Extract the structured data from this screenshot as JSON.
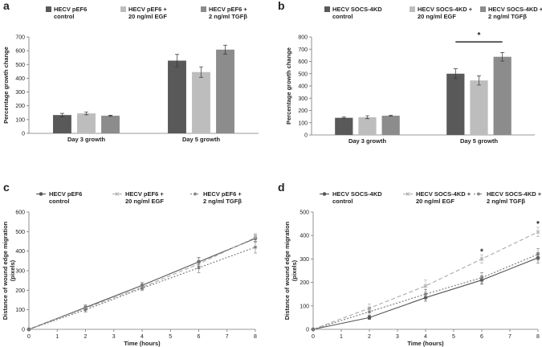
{
  "chart_data": [
    {
      "panel": "a",
      "type": "bar",
      "categories": [
        "Day 3 growth",
        "Day 5 growth"
      ],
      "series": [
        {
          "name": "HECV pEF6 control",
          "line1": "HECV pEF6",
          "line2": "control",
          "color": "#595959",
          "values": [
            133,
            528
          ],
          "errors": [
            12,
            45
          ]
        },
        {
          "name": "HECV pEF6 + 20 ng/ml EGF",
          "line1": "HECV pEF6 +",
          "line2": "20 ng/ml EGF",
          "color": "#bdbdbd",
          "values": [
            145,
            445
          ],
          "errors": [
            10,
            38
          ]
        },
        {
          "name": "HECV pEF6 + 2 ng/ml TGFβ",
          "line1": "HECV pEF6 +",
          "line2": "2 ng/ml TGFβ",
          "color": "#8c8c8c",
          "values": [
            128,
            608
          ],
          "errors": [
            4,
            32
          ]
        }
      ],
      "ylabel": "Percentage growth change",
      "xlabel": "",
      "ylim": [
        0,
        700
      ],
      "yticks": [
        "0",
        "100",
        "200",
        "300",
        "400",
        "500",
        "600",
        "700"
      ],
      "annotations": []
    },
    {
      "panel": "b",
      "type": "bar",
      "categories": [
        "Day 3 growth",
        "Day 5 growth"
      ],
      "series": [
        {
          "name": "HECV SOCS-4KD control",
          "line1": "HECV SOCS-4KD",
          "line2": "control",
          "color": "#595959",
          "values": [
            140,
            500
          ],
          "errors": [
            6,
            40
          ]
        },
        {
          "name": "HECV SOCS-4KD + 20 ng/ml EGF",
          "line1": "HECV SOCS-4KD +",
          "line2": "20 ng/ml EGF",
          "color": "#bdbdbd",
          "values": [
            145,
            445
          ],
          "errors": [
            12,
            38
          ]
        },
        {
          "name": "HECV SOCS-4KD + 2 ng/ml TGFβ",
          "line1": "HECV SOCS-4KD +",
          "line2": "2 ng/ml TGFβ",
          "color": "#8c8c8c",
          "values": [
            157,
            638
          ],
          "errors": [
            4,
            35
          ]
        }
      ],
      "ylabel": "Percentage growth change",
      "xlabel": "",
      "ylim": [
        0,
        800
      ],
      "yticks": [
        "0",
        "100",
        "200",
        "300",
        "400",
        "500",
        "600",
        "700",
        "800"
      ],
      "annotations": [
        {
          "type": "bracket",
          "category": "Day 5 growth",
          "from_series": 0,
          "to_series": 2,
          "y": 760,
          "text": "*"
        }
      ]
    },
    {
      "panel": "c",
      "type": "line",
      "x": [
        0,
        2,
        4,
        6,
        8
      ],
      "series": [
        {
          "name": "HECV pEF6 control",
          "line1": "HECV pEF6",
          "line2": "control",
          "color": "#555555",
          "dash": "",
          "marker": "circle",
          "values": [
            0,
            112,
            225,
            345,
            465
          ],
          "errors": [
            0,
            12,
            14,
            22,
            18
          ]
        },
        {
          "name": "HECV pEF6 + 20 ng/ml EGF",
          "line1": "HECV pEF6 +",
          "line2": "20 ng/ml EGF",
          "color": "#aaaaaa",
          "dash": "5,3",
          "marker": "cross",
          "values": [
            0,
            108,
            215,
            335,
            470
          ],
          "errors": [
            0,
            14,
            12,
            25,
            20
          ]
        },
        {
          "name": "HECV pEF6 + 2 ng/ml TGFβ",
          "line1": "HECV pEF6 +",
          "line2": "2 ng/ml TGFβ",
          "color": "#777777",
          "dash": "2,2",
          "marker": "star",
          "values": [
            0,
            100,
            210,
            315,
            420
          ],
          "errors": [
            0,
            12,
            12,
            25,
            30
          ]
        }
      ],
      "xlabel": "Time (hours)",
      "ylabel": "Distance of wound edge migration (pixels)",
      "ylabel_line1": "Distance of wound edge migration",
      "ylabel_line2": "(pixels)",
      "xlim": [
        0,
        8
      ],
      "ylim": [
        0,
        600
      ],
      "xticks": [
        "0",
        "1",
        "2",
        "3",
        "4",
        "5",
        "6",
        "7",
        "8"
      ],
      "yticks": [
        "0",
        "100",
        "200",
        "300",
        "400",
        "500",
        "600"
      ],
      "annotations": []
    },
    {
      "panel": "d",
      "type": "line",
      "x": [
        0,
        2,
        4,
        6,
        8
      ],
      "series": [
        {
          "name": "HECV SOCS-4KD control",
          "line1": "HECV SOCS-4KD",
          "line2": "control",
          "color": "#555555",
          "dash": "",
          "marker": "circle",
          "values": [
            0,
            50,
            135,
            210,
            305
          ],
          "errors": [
            0,
            8,
            15,
            18,
            22
          ]
        },
        {
          "name": "HECV SOCS-4KD + 20 ng/ml EGF",
          "line1": "HECV SOCS-4KD +",
          "line2": "20 ng/ml EGF",
          "color": "#aaaaaa",
          "dash": "5,3",
          "marker": "cross",
          "values": [
            0,
            90,
            185,
            300,
            415
          ],
          "errors": [
            0,
            18,
            25,
            18,
            20
          ]
        },
        {
          "name": "HECV SOCS-4KD + 2 ng/ml TGFβ",
          "line1": "HECV SOCS-4KD +",
          "line2": "2 ng/ml TGFβ",
          "color": "#777777",
          "dash": "2,2",
          "marker": "star",
          "values": [
            0,
            75,
            150,
            220,
            320
          ],
          "errors": [
            0,
            15,
            20,
            22,
            25
          ]
        }
      ],
      "xlabel": "Time (hours)",
      "ylabel": "Distance of wound edge migration (pixels)",
      "ylabel_line1": "Distance of wound edge migration",
      "ylabel_line2": "(pixels)",
      "xlim": [
        0,
        8
      ],
      "ylim": [
        0,
        500
      ],
      "xticks": [
        "0",
        "1",
        "2",
        "3",
        "4",
        "5",
        "6",
        "7",
        "8"
      ],
      "yticks": [
        "0",
        "100",
        "200",
        "300",
        "400",
        "500"
      ],
      "annotations": [
        {
          "type": "star",
          "x": 6,
          "y": 330,
          "text": "*"
        },
        {
          "type": "star",
          "x": 8,
          "y": 448,
          "text": "*"
        }
      ]
    }
  ]
}
